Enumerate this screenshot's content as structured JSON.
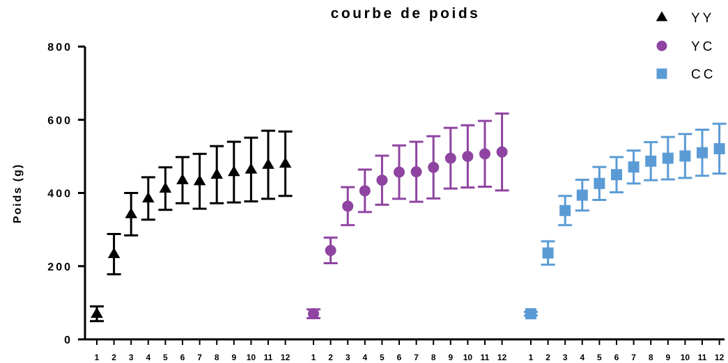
{
  "chart_data": {
    "type": "scatter",
    "title": "courbe de poids",
    "xlabel": "",
    "ylabel": "Poids (g)",
    "ylim": [
      0,
      800
    ],
    "yticks": [
      0,
      200,
      400,
      600,
      800
    ],
    "legend_position": "top-right",
    "grid": false,
    "groups": [
      "1",
      "2",
      "3",
      "4",
      "5",
      "6",
      "7",
      "8",
      "9",
      "10",
      "11",
      "12"
    ],
    "series": [
      {
        "name": "YY",
        "marker": "triangle",
        "color": "#000000",
        "mean": [
          70,
          233,
          342,
          385,
          412,
          435,
          432,
          450,
          457,
          464,
          477,
          480
        ],
        "error": [
          20,
          55,
          58,
          58,
          58,
          63,
          75,
          78,
          83,
          87,
          93,
          88
        ]
      },
      {
        "name": "YC",
        "marker": "circle",
        "color": "#8e44a0",
        "mean": [
          70,
          243,
          364,
          406,
          435,
          457,
          458,
          470,
          495,
          500,
          507,
          512
        ],
        "error": [
          12,
          35,
          52,
          58,
          67,
          73,
          82,
          85,
          83,
          85,
          90,
          105
        ]
      },
      {
        "name": "CC",
        "marker": "square",
        "color": "#5b9bd5",
        "mean": [
          70,
          236,
          352,
          394,
          426,
          450,
          471,
          487,
          495,
          501,
          510,
          521
        ],
        "error": [
          5,
          32,
          40,
          42,
          45,
          48,
          45,
          52,
          58,
          60,
          63,
          68
        ]
      }
    ]
  }
}
